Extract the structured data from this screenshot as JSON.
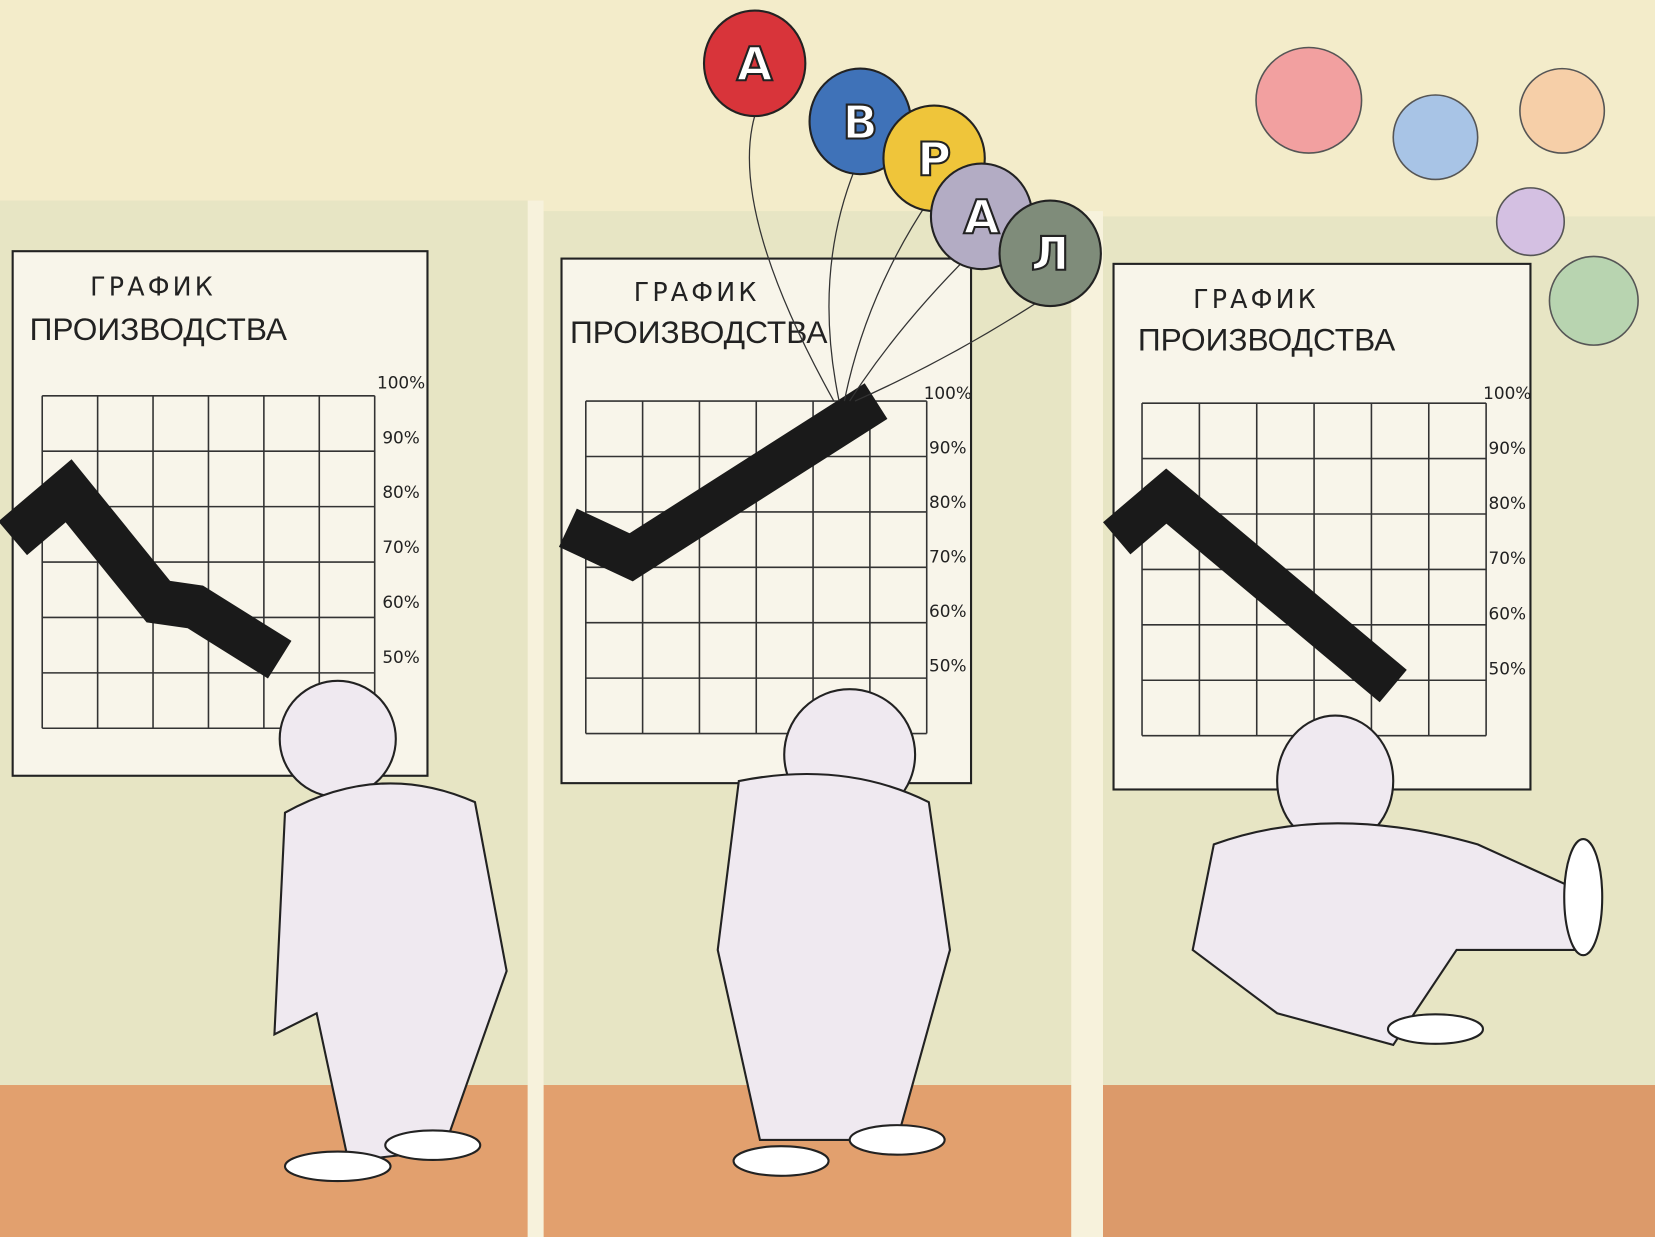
{
  "panels": [
    {
      "title": "ГРАФИК",
      "subtitle": "ПРОИЗВОДСТВА",
      "axis_labels": [
        "100%",
        "90%",
        "80%",
        "70%",
        "60%",
        "50%"
      ]
    },
    {
      "title": "ГРАФИК",
      "subtitle": "ПРОИЗВОДСТВА",
      "axis_labels": [
        "100%",
        "90%",
        "80%",
        "70%",
        "60%",
        "50%"
      ]
    },
    {
      "title": "ГРАФИК",
      "subtitle": "ПРОИЗВОДСТВА",
      "axis_labels": [
        "100%",
        "90%",
        "80%",
        "70%",
        "60%",
        "50%"
      ]
    }
  ],
  "balloons": [
    "А",
    "В",
    "Р",
    "А",
    "Л"
  ]
}
